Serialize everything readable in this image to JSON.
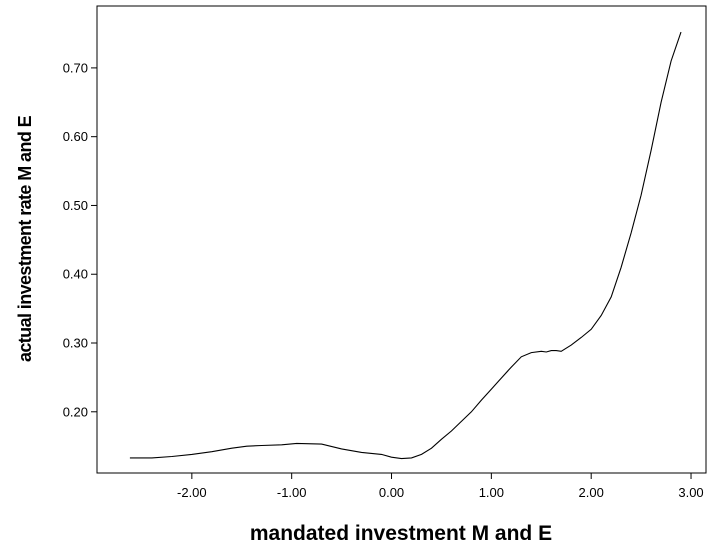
{
  "chart_data": {
    "type": "line",
    "title": "",
    "xlabel": "mandated investment M and E",
    "ylabel": "actual investment rate M and E",
    "xlim": [
      -2.95,
      3.15
    ],
    "ylim": [
      0.111,
      0.79
    ],
    "x_ticks": [
      -2,
      -1,
      0,
      1,
      2,
      3
    ],
    "x_tick_labels": [
      "-2.00",
      "-1.00",
      "0.00",
      "1.00",
      "2.00",
      "3.00"
    ],
    "y_ticks": [
      0.2,
      0.3,
      0.4,
      0.5,
      0.6,
      0.7
    ],
    "y_tick_labels": [
      "0.20",
      "0.30",
      "0.40",
      "0.50",
      "0.60",
      "0.70"
    ],
    "grid": false,
    "legend": "none",
    "series": [
      {
        "color": "#000000",
        "x": [
          -2.62,
          -2.4,
          -2.2,
          -2.0,
          -1.8,
          -1.6,
          -1.45,
          -1.3,
          -1.1,
          -0.95,
          -0.7,
          -0.5,
          -0.3,
          -0.1,
          0.0,
          0.1,
          0.2,
          0.3,
          0.4,
          0.5,
          0.6,
          0.7,
          0.8,
          0.9,
          1.0,
          1.1,
          1.2,
          1.3,
          1.4,
          1.5,
          1.55,
          1.6,
          1.65,
          1.7,
          1.8,
          1.9,
          2.0,
          2.1,
          2.2,
          2.3,
          2.4,
          2.5,
          2.6,
          2.7,
          2.8,
          2.9
        ],
        "y": [
          0.133,
          0.133,
          0.135,
          0.138,
          0.142,
          0.147,
          0.15,
          0.151,
          0.152,
          0.154,
          0.153,
          0.146,
          0.141,
          0.138,
          0.134,
          0.132,
          0.133,
          0.138,
          0.147,
          0.16,
          0.172,
          0.186,
          0.2,
          0.217,
          0.233,
          0.249,
          0.265,
          0.28,
          0.286,
          0.288,
          0.287,
          0.289,
          0.289,
          0.288,
          0.297,
          0.308,
          0.32,
          0.34,
          0.367,
          0.41,
          0.46,
          0.515,
          0.58,
          0.65,
          0.71,
          0.752
        ]
      }
    ]
  }
}
